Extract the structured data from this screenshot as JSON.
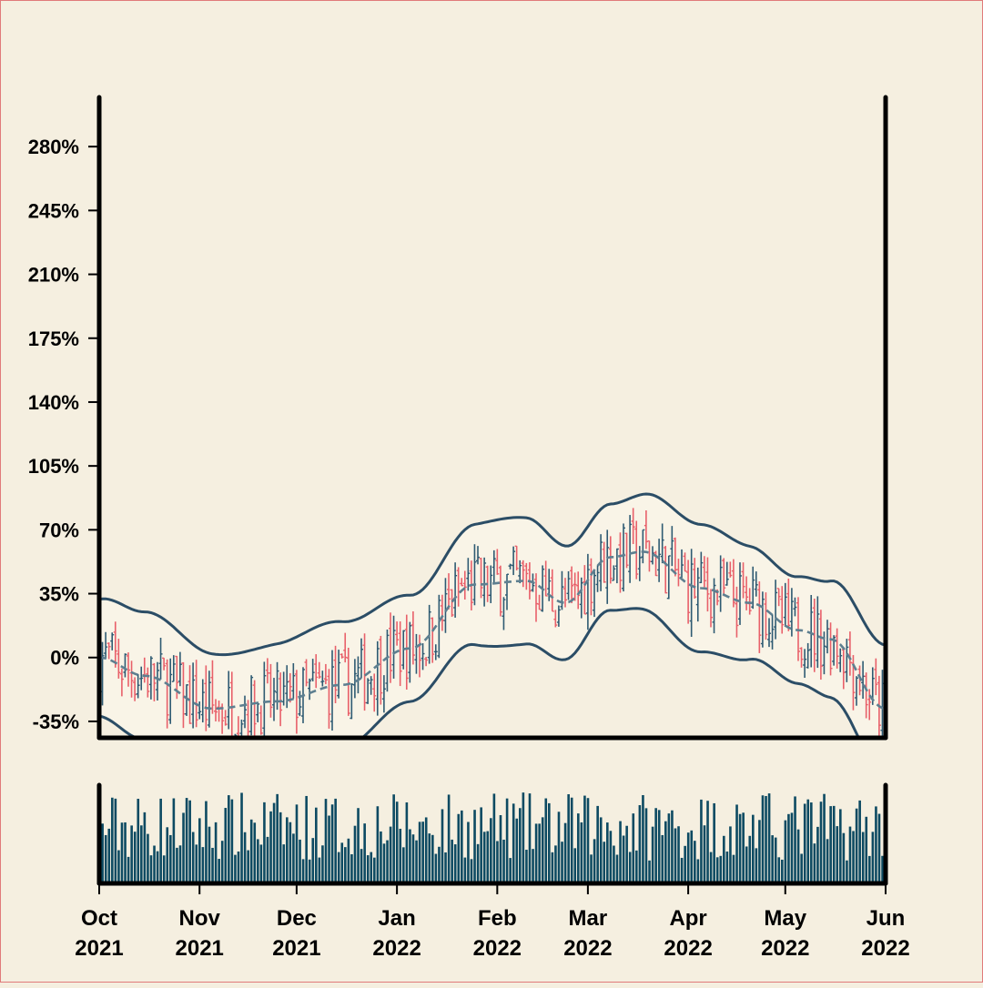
{
  "chart_data": {
    "type": "candlestick",
    "title": "",
    "xlabel": "",
    "ylabel": "",
    "x_range": [
      "2021-10-01",
      "2022-06-01"
    ],
    "ylim": [
      -44,
      307
    ],
    "y_ticks": [
      -35,
      0,
      35,
      70,
      105,
      140,
      175,
      210,
      245,
      280
    ],
    "y_tick_labels": [
      "-35%",
      "0%",
      "35%",
      "70%",
      "105%",
      "140%",
      "175%",
      "210%",
      "245%",
      "280%"
    ],
    "x_tick_labels": [
      {
        "month": "Oct",
        "year": "2021"
      },
      {
        "month": "Nov",
        "year": "2021"
      },
      {
        "month": "Dec",
        "year": "2021"
      },
      {
        "month": "Jan",
        "year": "2022"
      },
      {
        "month": "Feb",
        "year": "2022"
      },
      {
        "month": "Mar",
        "year": "2022"
      },
      {
        "month": "Apr",
        "year": "2022"
      },
      {
        "month": "May",
        "year": "2022"
      },
      {
        "month": "Jun",
        "year": "2022"
      }
    ],
    "x_tick_dates": [
      "2021-10-01",
      "2021-11-01",
      "2021-12-01",
      "2022-01-01",
      "2022-02-01",
      "2022-03-01",
      "2022-04-01",
      "2022-05-01",
      "2022-06-01"
    ],
    "trend_anchors": [
      {
        "date": "2021-10-01",
        "pct": 0
      },
      {
        "date": "2021-10-15",
        "pct": -10
      },
      {
        "date": "2021-11-05",
        "pct": -28
      },
      {
        "date": "2021-11-25",
        "pct": -24
      },
      {
        "date": "2021-12-15",
        "pct": -15
      },
      {
        "date": "2022-01-05",
        "pct": 5
      },
      {
        "date": "2022-01-25",
        "pct": 40
      },
      {
        "date": "2022-02-10",
        "pct": 42
      },
      {
        "date": "2022-02-22",
        "pct": 30
      },
      {
        "date": "2022-03-08",
        "pct": 55
      },
      {
        "date": "2022-03-18",
        "pct": 58
      },
      {
        "date": "2022-04-05",
        "pct": 38
      },
      {
        "date": "2022-04-20",
        "pct": 30
      },
      {
        "date": "2022-05-05",
        "pct": 15
      },
      {
        "date": "2022-05-15",
        "pct": 10
      },
      {
        "date": "2022-06-01",
        "pct": -28
      }
    ],
    "band_half_width_pct": 32,
    "series": [
      {
        "kind": "ohlc_bars",
        "up_color": "#2e5a72",
        "down_color": "#e8606a"
      },
      {
        "kind": "moving_average",
        "style": "dashed",
        "color": "#5e7f90"
      },
      {
        "kind": "upper_band",
        "color": "#2b4d66"
      },
      {
        "kind": "lower_band",
        "color": "#2b4d66"
      },
      {
        "kind": "volume",
        "color": "#0d4a62"
      }
    ],
    "grid": false,
    "legend": "none"
  }
}
